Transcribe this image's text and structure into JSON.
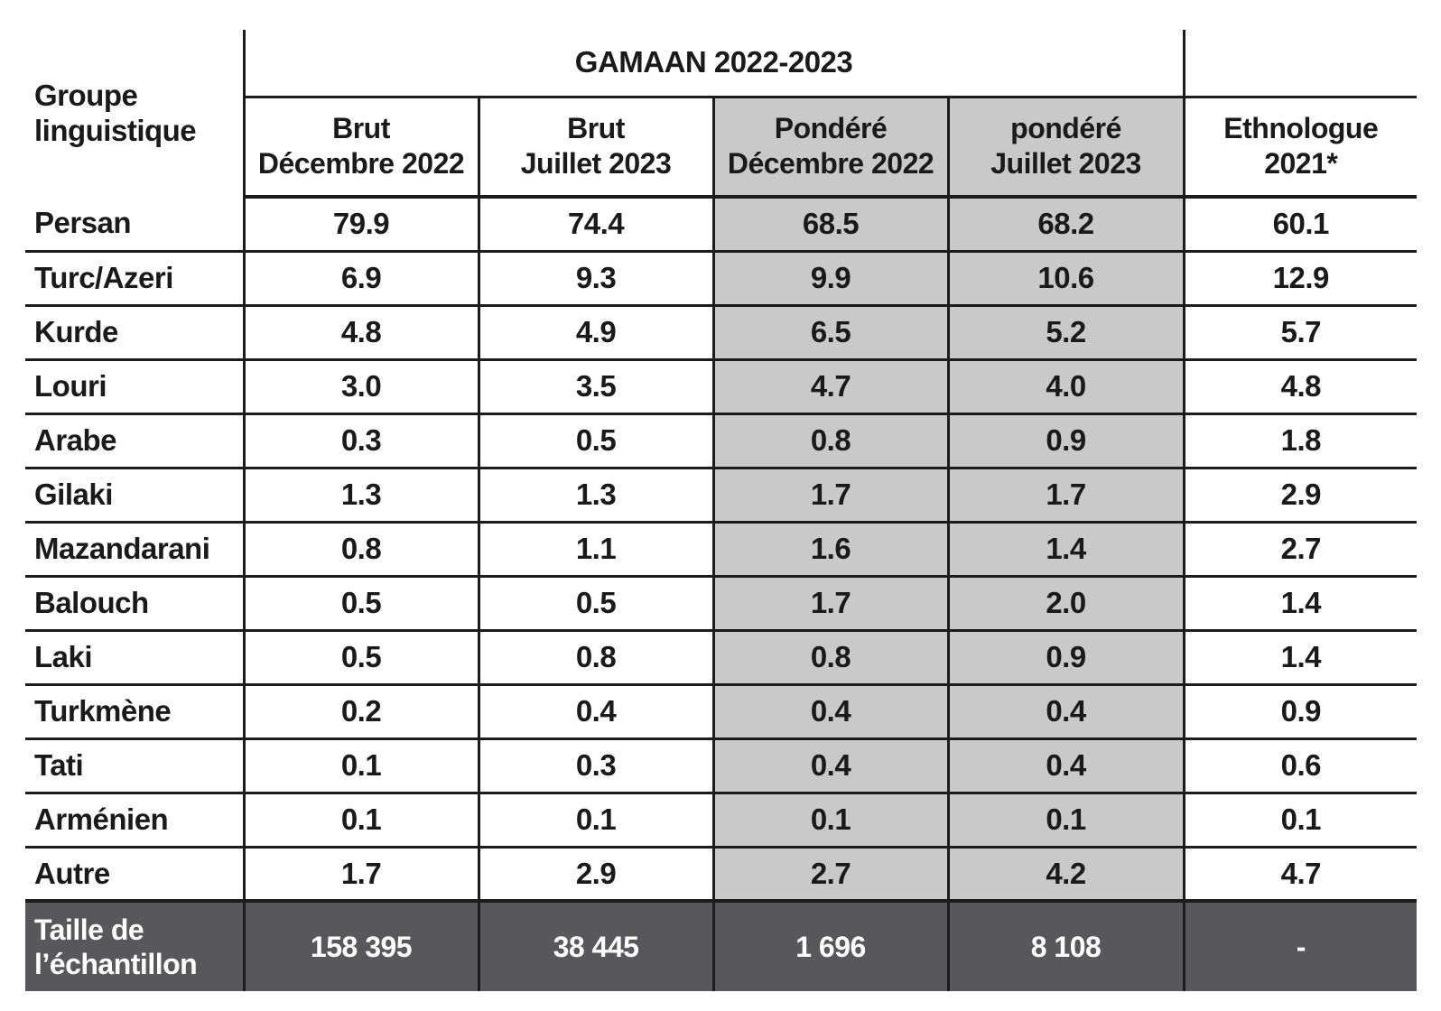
{
  "colors": {
    "border": "#1c1c1c",
    "shaded_column_background": "#c9c9c9",
    "footer_background": "#58585a",
    "footer_text": "#ffffff",
    "text": "#1a1a1a"
  },
  "table": {
    "corner_header": "Groupe linguistique",
    "group_header": "GAMAAN 2022-2023",
    "columns": [
      {
        "line1": "Brut",
        "line2": "Décembre 2022"
      },
      {
        "line1": "Brut",
        "line2": "Juillet 2023"
      },
      {
        "line1": "Pondéré",
        "line2": "Décembre 2022"
      },
      {
        "line1": "pondéré",
        "line2": "Juillet 2023"
      },
      {
        "line1": "Ethnologue",
        "line2": "2021*"
      }
    ],
    "rows": [
      {
        "label": "Persan",
        "values": [
          "79.9",
          "74.4",
          "68.5",
          "68.2",
          "60.1"
        ]
      },
      {
        "label": "Turc/Azeri",
        "values": [
          "6.9",
          "9.3",
          "9.9",
          "10.6",
          "12.9"
        ]
      },
      {
        "label": "Kurde",
        "values": [
          "4.8",
          "4.9",
          "6.5",
          "5.2",
          "5.7"
        ]
      },
      {
        "label": "Louri",
        "values": [
          "3.0",
          "3.5",
          "4.7",
          "4.0",
          "4.8"
        ]
      },
      {
        "label": "Arabe",
        "values": [
          "0.3",
          "0.5",
          "0.8",
          "0.9",
          "1.8"
        ]
      },
      {
        "label": "Gilaki",
        "values": [
          "1.3",
          "1.3",
          "1.7",
          "1.7",
          "2.9"
        ]
      },
      {
        "label": "Mazandarani",
        "values": [
          "0.8",
          "1.1",
          "1.6",
          "1.4",
          "2.7"
        ]
      },
      {
        "label": "Balouch",
        "values": [
          "0.5",
          "0.5",
          "1.7",
          "2.0",
          "1.4"
        ]
      },
      {
        "label": "Laki",
        "values": [
          "0.5",
          "0.8",
          "0.8",
          "0.9",
          "1.4"
        ]
      },
      {
        "label": "Turkmène",
        "values": [
          "0.2",
          "0.4",
          "0.4",
          "0.4",
          "0.9"
        ]
      },
      {
        "label": "Tati",
        "values": [
          "0.1",
          "0.3",
          "0.4",
          "0.4",
          "0.6"
        ]
      },
      {
        "label": "Arménien",
        "values": [
          "0.1",
          "0.1",
          "0.1",
          "0.1",
          "0.1"
        ]
      },
      {
        "label": "Autre",
        "values": [
          "1.7",
          "2.9",
          "2.7",
          "4.2",
          "4.7"
        ]
      }
    ],
    "footer": {
      "label": "Taille de l’échantillon",
      "values": [
        "158 395",
        "38 445",
        "1 696",
        "8 108",
        "-"
      ]
    }
  }
}
